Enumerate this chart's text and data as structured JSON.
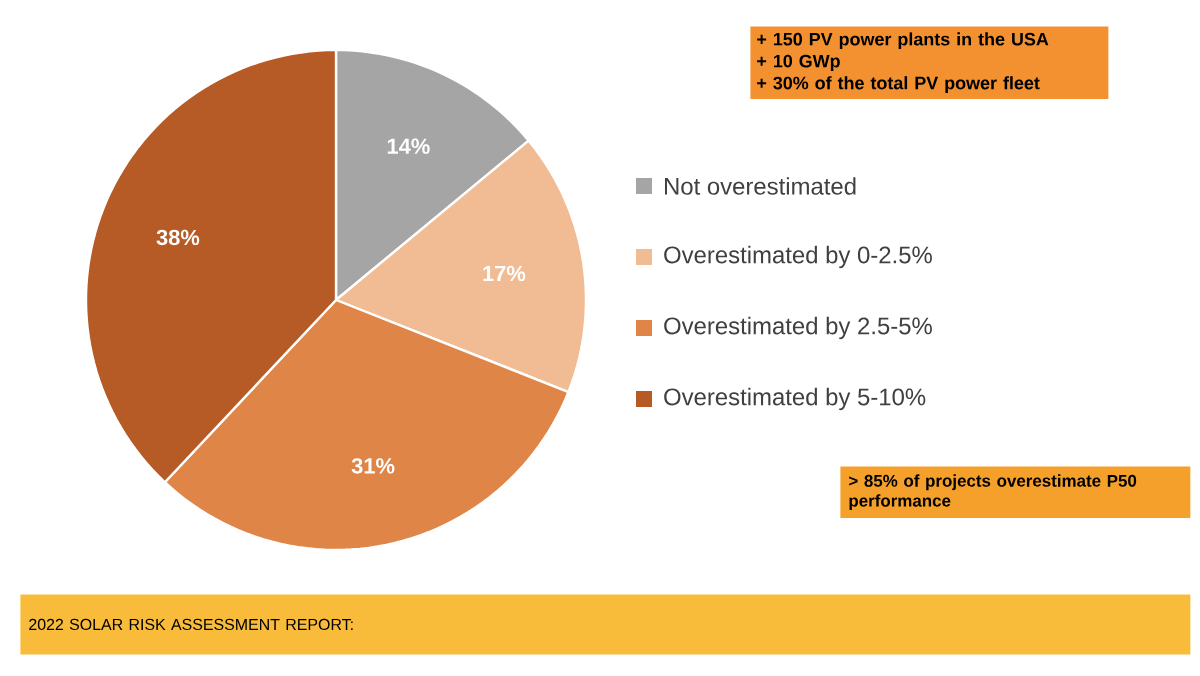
{
  "chart_data": {
    "type": "pie",
    "categories": [
      "Not overestimated",
      "Overestimated by 0-2.5%",
      "Overestimated by 2.5-5%",
      "Overestimated by 5-10%"
    ],
    "values": [
      14,
      17,
      31,
      38
    ],
    "colors": [
      "#a5a5a5",
      "#f1bc93",
      "#df8548",
      "#b65a26"
    ],
    "value_labels": [
      "14%",
      "17%",
      "31%",
      "38%"
    ],
    "legend": "right",
    "annotations": [
      "+ 150 PV power plants in the USA",
      "+ 10 GWp",
      "+ 30% of the total PV power fleet",
      "> 85% of projects overestimate P50 performance",
      "2022 SOLAR RISK ASSESSMENT REPORT:"
    ]
  }
}
